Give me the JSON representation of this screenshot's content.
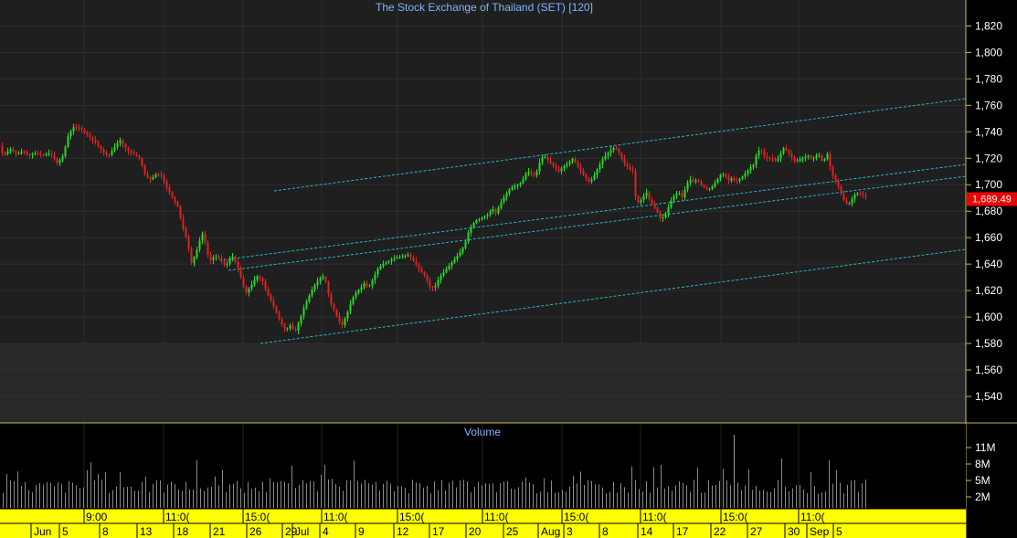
{
  "chart_data": [
    {
      "type": "candlestick",
      "title": "The Stock Exchange of Thailand (SET) [120]",
      "ylim": [
        1520,
        1840
      ],
      "y_ticks": [
        1540,
        1560,
        1580,
        1600,
        1620,
        1640,
        1660,
        1680,
        1700,
        1720,
        1740,
        1760,
        1780,
        1800,
        1820
      ],
      "last_price": "1,689.49",
      "colors": {
        "up": "#22dd22",
        "down": "#dd2222",
        "channel": "#22b8c8",
        "last_badge": "#ee0000"
      },
      "grid": true,
      "price_path": [
        [
          0,
          1730
        ],
        [
          5,
          1722
        ],
        [
          12,
          1727
        ],
        [
          20,
          1723
        ],
        [
          26,
          1726
        ],
        [
          32,
          1722
        ],
        [
          40,
          1724
        ],
        [
          48,
          1722
        ],
        [
          56,
          1724
        ],
        [
          64,
          1716
        ],
        [
          70,
          1722
        ],
        [
          76,
          1738
        ],
        [
          82,
          1744
        ],
        [
          90,
          1742
        ],
        [
          96,
          1738
        ],
        [
          104,
          1733
        ],
        [
          110,
          1728
        ],
        [
          116,
          1723
        ],
        [
          120,
          1722
        ],
        [
          126,
          1728
        ],
        [
          132,
          1734
        ],
        [
          136,
          1730
        ],
        [
          142,
          1725
        ],
        [
          148,
          1723
        ],
        [
          154,
          1720
        ],
        [
          160,
          1707
        ],
        [
          166,
          1704
        ],
        [
          172,
          1708
        ],
        [
          178,
          1707
        ],
        [
          184,
          1697
        ],
        [
          190,
          1690
        ],
        [
          196,
          1683
        ],
        [
          200,
          1670
        ],
        [
          204,
          1662
        ],
        [
          207,
          1654
        ],
        [
          210,
          1640
        ],
        [
          214,
          1646
        ],
        [
          218,
          1654
        ],
        [
          222,
          1664
        ],
        [
          226,
          1655
        ],
        [
          230,
          1642
        ],
        [
          236,
          1646
        ],
        [
          242,
          1644
        ],
        [
          248,
          1638
        ],
        [
          252,
          1644
        ],
        [
          256,
          1646
        ],
        [
          262,
          1636
        ],
        [
          266,
          1626
        ],
        [
          270,
          1618
        ],
        [
          276,
          1624
        ],
        [
          282,
          1631
        ],
        [
          288,
          1628
        ],
        [
          292,
          1620
        ],
        [
          298,
          1612
        ],
        [
          303,
          1604
        ],
        [
          308,
          1596
        ],
        [
          314,
          1590
        ],
        [
          318,
          1594
        ],
        [
          324,
          1589
        ],
        [
          328,
          1596
        ],
        [
          333,
          1606
        ],
        [
          338,
          1614
        ],
        [
          342,
          1620
        ],
        [
          348,
          1627
        ],
        [
          354,
          1631
        ],
        [
          358,
          1626
        ],
        [
          362,
          1612
        ],
        [
          366,
          1606
        ],
        [
          370,
          1600
        ],
        [
          375,
          1593
        ],
        [
          378,
          1598
        ],
        [
          382,
          1605
        ],
        [
          386,
          1613
        ],
        [
          390,
          1618
        ],
        [
          396,
          1622
        ],
        [
          400,
          1626
        ],
        [
          404,
          1622
        ],
        [
          408,
          1627
        ],
        [
          414,
          1636
        ],
        [
          420,
          1640
        ],
        [
          426,
          1642
        ],
        [
          430,
          1644
        ],
        [
          436,
          1645
        ],
        [
          442,
          1646
        ],
        [
          448,
          1647
        ],
        [
          454,
          1642
        ],
        [
          460,
          1636
        ],
        [
          466,
          1631
        ],
        [
          472,
          1622
        ],
        [
          477,
          1623
        ],
        [
          482,
          1630
        ],
        [
          488,
          1635
        ],
        [
          494,
          1640
        ],
        [
          500,
          1645
        ],
        [
          506,
          1650
        ],
        [
          510,
          1656
        ],
        [
          514,
          1665
        ],
        [
          518,
          1670
        ],
        [
          522,
          1673
        ],
        [
          528,
          1675
        ],
        [
          534,
          1677
        ],
        [
          540,
          1682
        ],
        [
          544,
          1678
        ],
        [
          548,
          1685
        ],
        [
          552,
          1690
        ],
        [
          556,
          1694
        ],
        [
          560,
          1698
        ],
        [
          566,
          1699
        ],
        [
          572,
          1702
        ],
        [
          576,
          1708
        ],
        [
          580,
          1710
        ],
        [
          584,
          1706
        ],
        [
          588,
          1709
        ],
        [
          592,
          1718
        ],
        [
          596,
          1722
        ],
        [
          600,
          1719
        ],
        [
          604,
          1716
        ],
        [
          608,
          1713
        ],
        [
          612,
          1710
        ],
        [
          618,
          1714
        ],
        [
          624,
          1717
        ],
        [
          628,
          1720
        ],
        [
          634,
          1713
        ],
        [
          640,
          1707
        ],
        [
          646,
          1702
        ],
        [
          650,
          1705
        ],
        [
          654,
          1711
        ],
        [
          658,
          1716
        ],
        [
          662,
          1721
        ],
        [
          668,
          1725
        ],
        [
          672,
          1728
        ],
        [
          676,
          1727
        ],
        [
          680,
          1722
        ],
        [
          684,
          1716
        ],
        [
          690,
          1712
        ],
        [
          694,
          1710
        ],
        [
          696,
          1692
        ],
        [
          700,
          1686
        ],
        [
          704,
          1690
        ],
        [
          708,
          1695
        ],
        [
          712,
          1688
        ],
        [
          716,
          1684
        ],
        [
          720,
          1680
        ],
        [
          724,
          1674
        ],
        [
          728,
          1676
        ],
        [
          732,
          1682
        ],
        [
          736,
          1689
        ],
        [
          740,
          1693
        ],
        [
          744,
          1694
        ],
        [
          748,
          1690
        ],
        [
          752,
          1700
        ],
        [
          756,
          1704
        ],
        [
          760,
          1702
        ],
        [
          764,
          1704
        ],
        [
          768,
          1700
        ],
        [
          772,
          1698
        ],
        [
          776,
          1696
        ],
        [
          780,
          1698
        ],
        [
          784,
          1702
        ],
        [
          790,
          1708
        ],
        [
          794,
          1708
        ],
        [
          798,
          1703
        ],
        [
          802,
          1705
        ],
        [
          806,
          1702
        ],
        [
          812,
          1705
        ],
        [
          816,
          1708
        ],
        [
          822,
          1713
        ],
        [
          826,
          1715
        ],
        [
          830,
          1726
        ],
        [
          834,
          1726
        ],
        [
          838,
          1721
        ],
        [
          842,
          1720
        ],
        [
          846,
          1720
        ],
        [
          850,
          1718
        ],
        [
          854,
          1721
        ],
        [
          858,
          1728
        ],
        [
          862,
          1726
        ],
        [
          866,
          1722
        ],
        [
          870,
          1718
        ],
        [
          874,
          1718
        ],
        [
          878,
          1720
        ],
        [
          882,
          1721
        ],
        [
          886,
          1722
        ],
        [
          890,
          1719
        ],
        [
          894,
          1722
        ],
        [
          898,
          1722
        ],
        [
          902,
          1716
        ],
        [
          906,
          1725
        ],
        [
          910,
          1712
        ],
        [
          914,
          1704
        ],
        [
          918,
          1700
        ],
        [
          922,
          1692
        ],
        [
          926,
          1686
        ],
        [
          930,
          1685
        ],
        [
          934,
          1690
        ],
        [
          938,
          1694
        ],
        [
          942,
          1693
        ],
        [
          946,
          1692
        ],
        [
          950,
          1690
        ]
      ]
    },
    {
      "type": "bar",
      "title": "Volume",
      "y_ticks": [
        "11M",
        "8M",
        "5M",
        "2M"
      ],
      "ylim": [
        0,
        14
      ],
      "spike": {
        "x": 803,
        "value": 13.3
      }
    }
  ],
  "time_axis": {
    "top": [
      {
        "label": "9:00",
        "x": 92
      },
      {
        "label": "11:0(",
        "x": 179
      },
      {
        "label": "15:0(",
        "x": 266
      },
      {
        "label": "11:0(",
        "x": 352
      },
      {
        "label": "15:0(",
        "x": 435
      },
      {
        "label": "11:0(",
        "x": 528
      },
      {
        "label": "15:0(",
        "x": 615
      },
      {
        "label": "11:0(",
        "x": 701
      },
      {
        "label": "15:0(",
        "x": 789
      },
      {
        "label": "11:0(",
        "x": 874
      }
    ],
    "bottom": [
      {
        "label": "Jun",
        "x": 37
      },
      {
        "label": "5",
        "x": 68
      },
      {
        "label": "8",
        "x": 112
      },
      {
        "label": "13",
        "x": 153
      },
      {
        "label": "18",
        "x": 193
      },
      {
        "label": "21",
        "x": 233
      },
      {
        "label": "26",
        "x": 273
      },
      {
        "label": "29",
        "x": 312
      },
      {
        "label": "Jul",
        "x": 323
      },
      {
        "label": "4",
        "x": 353
      },
      {
        "label": "9",
        "x": 392
      },
      {
        "label": "12",
        "x": 434
      },
      {
        "label": "17",
        "x": 473
      },
      {
        "label": "20",
        "x": 513
      },
      {
        "label": "25",
        "x": 554
      },
      {
        "label": "Aug",
        "x": 592
      },
      {
        "label": "3",
        "x": 620
      },
      {
        "label": "8",
        "x": 659
      },
      {
        "label": "14",
        "x": 701
      },
      {
        "label": "17",
        "x": 740
      },
      {
        "label": "22",
        "x": 781
      },
      {
        "label": "27",
        "x": 821
      },
      {
        "label": "30",
        "x": 862
      },
      {
        "label": "Sep",
        "x": 886
      },
      {
        "label": "5",
        "x": 915
      }
    ]
  }
}
